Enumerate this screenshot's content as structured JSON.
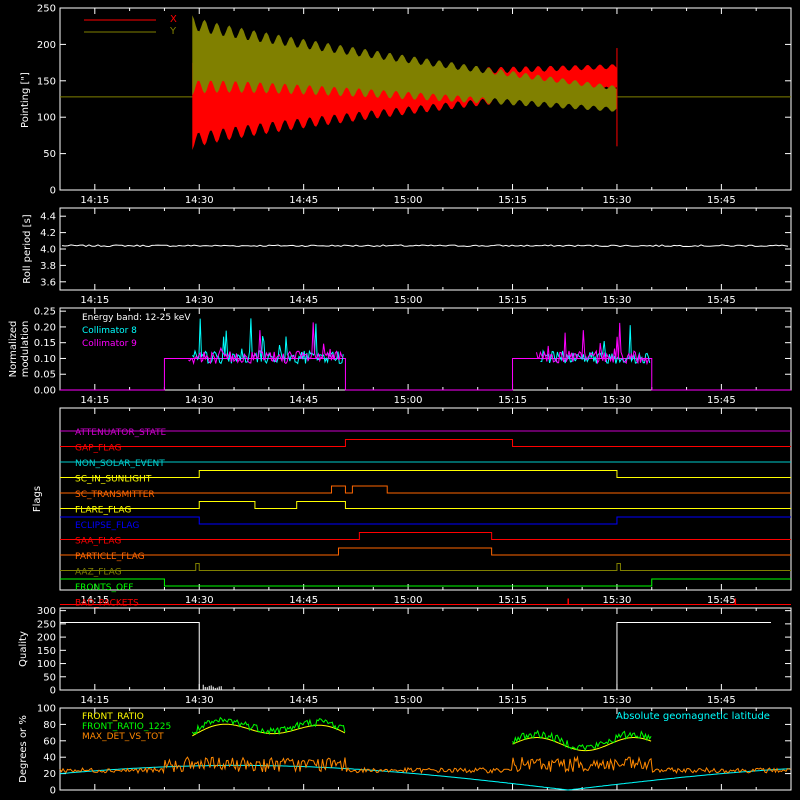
{
  "window": {
    "background": "#000000"
  },
  "time_axis": {
    "tick_labels": [
      "14:15",
      "14:30",
      "14:45",
      "15:00",
      "15:15",
      "15:30",
      "15:45"
    ]
  },
  "chart_data": [
    {
      "id": "pointing",
      "type": "line",
      "ylabel": "Pointing [\"]",
      "ylim": [
        0,
        250
      ],
      "yticks": [
        0,
        50,
        100,
        150,
        200,
        250
      ],
      "legend": {
        "placement": "top-left",
        "entries": [
          {
            "name": "X",
            "color": "#ff0000"
          },
          {
            "name": "Y",
            "color": "#808000"
          }
        ]
      },
      "series": [
        {
          "name": "X",
          "color": "#ff0000",
          "start": "14:29",
          "end": "15:30",
          "center_start": 115,
          "center_end": 155,
          "amp_start": 60,
          "amp_end": 18
        },
        {
          "name": "Y",
          "color": "#808000",
          "start": "14:29",
          "end": "15:30",
          "center_start": 185,
          "center_end": 125,
          "amp_start": 55,
          "amp_end": 18
        }
      ],
      "baseline": {
        "value": 128,
        "color": "#808000"
      }
    },
    {
      "id": "roll_period",
      "type": "line",
      "ylabel": "Roll period [s]",
      "ylim": [
        3.5,
        4.5
      ],
      "yticks": [
        3.6,
        3.8,
        4.0,
        4.2,
        4.4
      ],
      "tick_labels": [
        "3.6",
        "3.8",
        "4.0",
        "4.2",
        "4.4"
      ],
      "series": [
        {
          "name": "roll",
          "color": "#ffffff",
          "value": 4.04
        }
      ]
    },
    {
      "id": "modulation",
      "type": "line",
      "ylabel": [
        "Normalized",
        "modulation"
      ],
      "ylim": [
        0,
        0.26
      ],
      "yticks": [
        0,
        0.05,
        0.1,
        0.15,
        0.2,
        0.25
      ],
      "tick_labels": [
        "0.00",
        "0.05",
        "0.10",
        "0.15",
        "0.20",
        "0.25"
      ],
      "annotation": "Energy band: 12-25 keV",
      "legend": {
        "placement": "top-left",
        "entries": [
          {
            "name": "Collimator 8",
            "color": "#00ffff"
          },
          {
            "name": "Collimator 9",
            "color": "#ff00ff"
          }
        ]
      },
      "intervals": [
        [
          "14:25",
          "14:51"
        ],
        [
          "15:15",
          "15:35"
        ]
      ],
      "level": 0.1
    },
    {
      "id": "flags",
      "type": "line",
      "ylabel": "Flags",
      "rows": [
        {
          "name": "ATTENUATOR_STATE",
          "color": "#cc00cc",
          "segments": []
        },
        {
          "name": "GAP_FLAG",
          "color": "#ff0000",
          "segments": [
            [
              "14:51",
              "15:15"
            ]
          ]
        },
        {
          "name": "NON_SOLAR_EVENT",
          "color": "#00cccc",
          "segments": []
        },
        {
          "name": "SC_IN_SUNLIGHT",
          "color": "#ffff00",
          "segments": [
            [
              "14:30",
              "15:30"
            ]
          ]
        },
        {
          "name": "SC_TRANSMITTER",
          "color": "#ff6600",
          "segments": [
            [
              "14:49",
              "14:51"
            ],
            [
              "14:52",
              "14:57"
            ]
          ]
        },
        {
          "name": "FLARE_FLAG",
          "color": "#ffff00",
          "segments": [
            [
              "14:30",
              "14:38"
            ],
            [
              "14:44",
              "14:51"
            ]
          ]
        },
        {
          "name": "ECLIPSE_FLAG",
          "color": "#0000ff",
          "inverted": true,
          "segments": [
            [
              "14:30",
              "15:30"
            ]
          ]
        },
        {
          "name": "SAA_FLAG",
          "color": "#ff0000",
          "segments": [
            [
              "14:53",
              "15:12"
            ]
          ]
        },
        {
          "name": "PARTICLE_FLAG",
          "color": "#ff6600",
          "segments": [
            [
              "14:50",
              "15:12"
            ]
          ]
        },
        {
          "name": "AAZ_FLAG",
          "color": "#808000",
          "segments": [
            [
              "14:29.5",
              "14:30"
            ],
            [
              "15:30",
              "15:30.5"
            ]
          ]
        },
        {
          "name": "FRONTS_OFF",
          "color": "#00ff00",
          "inverted": true,
          "segments": [
            [
              "14:25",
              "15:35"
            ]
          ]
        },
        {
          "name": "BAD_PACKETS",
          "color": "#ff0000",
          "spikes": [
            "15:23",
            "15:47"
          ]
        }
      ]
    },
    {
      "id": "quality",
      "type": "line",
      "ylabel": "Quality",
      "ylim": [
        0,
        310
      ],
      "yticks": [
        0,
        50,
        100,
        150,
        200,
        250,
        300
      ],
      "series": [
        {
          "name": "quality",
          "color": "#ffffff",
          "high": 255,
          "low_start": "14:30",
          "low_end": "15:30"
        }
      ]
    },
    {
      "id": "ratios",
      "type": "line",
      "ylabel": "Degrees or %",
      "ylim": [
        0,
        100
      ],
      "yticks": [
        0,
        20,
        40,
        60,
        80,
        100
      ],
      "legend": {
        "placement": "top-left",
        "entries": [
          {
            "name": "FRONT_RATIO",
            "color": "#ffff00"
          },
          {
            "name": "FRONT_RATIO_1225",
            "color": "#00ff00"
          },
          {
            "name": "MAX_DET_VS_TOT",
            "color": "#ff8800"
          }
        ]
      },
      "annotation": {
        "text": "Absolute geomagnetic latitude",
        "color": "#00ffff"
      }
    }
  ]
}
